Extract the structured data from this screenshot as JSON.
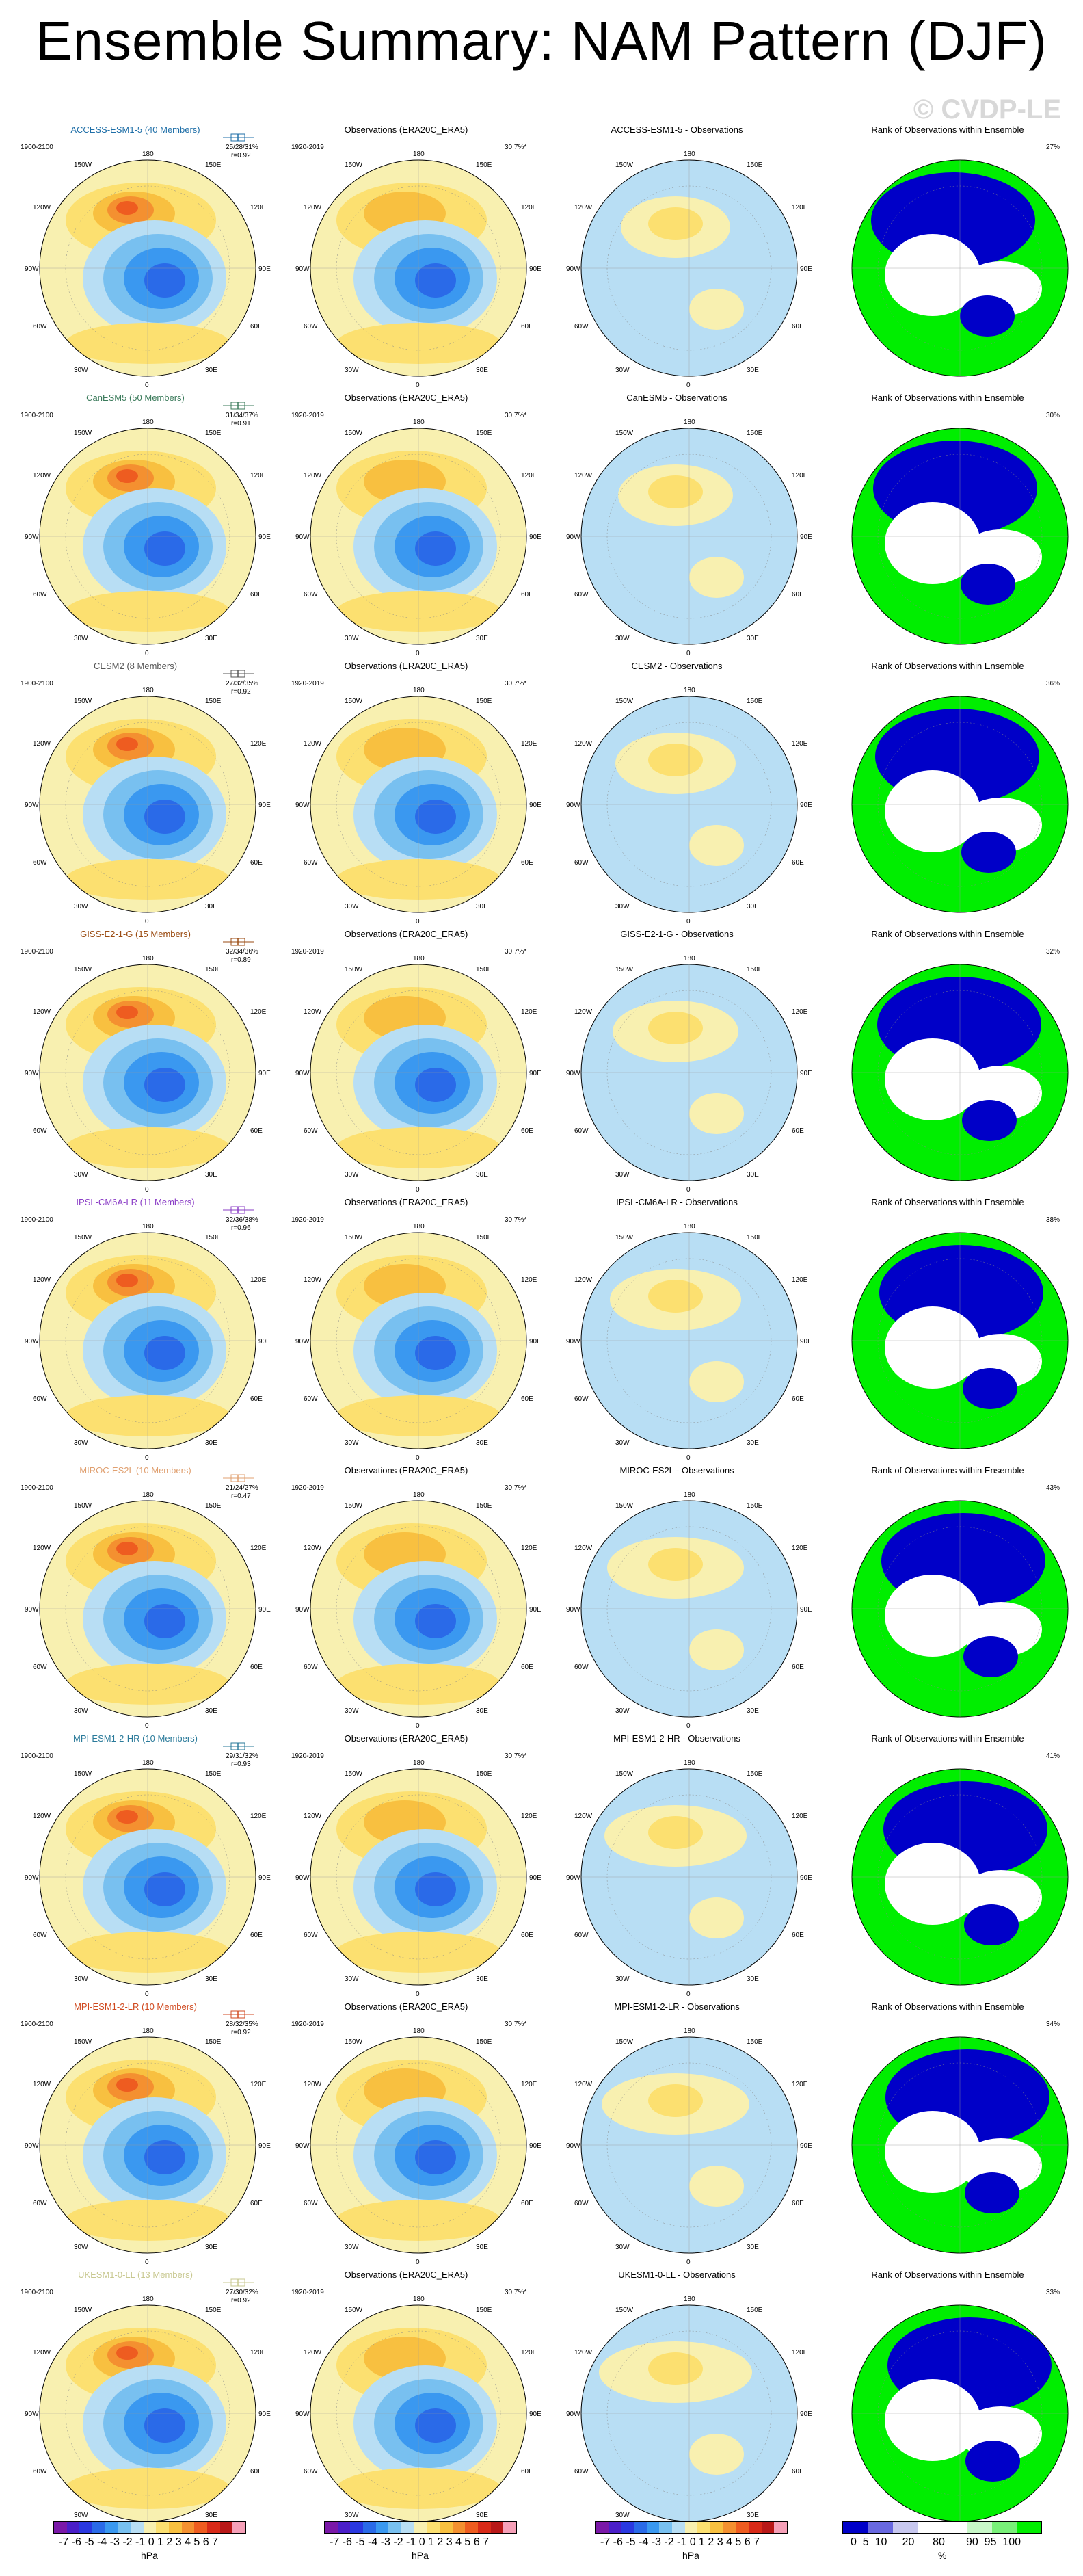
{
  "page": {
    "title": "Ensemble Summary: NAM Pattern (DJF)",
    "watermark": "© CVDP-LE"
  },
  "labels": {
    "lon_180": "180",
    "lon_0": "0",
    "lon_150w": "150W",
    "lon_120w": "120W",
    "lon_90w": "90W",
    "lon_60w": "60W",
    "lon_30w": "30W",
    "lon_150e": "150E",
    "lon_120e": "120E",
    "lon_90e": "90E",
    "lon_60e": "60E",
    "lon_30e": "30E"
  },
  "columns": {
    "obs_title": "Observations (ERA20C_ERA5)",
    "obs_period": "1920-2019",
    "obs_pvar": "30.7%*",
    "rank_title": "Rank of Observations within Ensemble",
    "model_period": "1900-2100"
  },
  "rows": [
    {
      "model": "ACCESS-ESM1-5 (40 Members)",
      "color": "#1f6fa8",
      "stat1": "25/28/31%",
      "stat2": "r=0.92",
      "diff_title": "ACCESS-ESM1-5 - Observations",
      "rank_pct": "27%"
    },
    {
      "model": "CanESM5 (50 Members)",
      "color": "#3a7a5a",
      "stat1": "31/34/37%",
      "stat2": "r=0.91",
      "diff_title": "CanESM5 - Observations",
      "rank_pct": "30%"
    },
    {
      "model": "CESM2 (8 Members)",
      "color": "#555555",
      "stat1": "27/32/35%",
      "stat2": "r=0.92",
      "diff_title": "CESM2 - Observations",
      "rank_pct": "36%"
    },
    {
      "model": "GISS-E2-1-G (15 Members)",
      "color": "#9a4a10",
      "stat1": "32/34/36%",
      "stat2": "r=0.89",
      "diff_title": "GISS-E2-1-G - Observations",
      "rank_pct": "32%"
    },
    {
      "model": "IPSL-CM6A-LR (11 Members)",
      "color": "#8a3cc6",
      "stat1": "32/36/38%",
      "stat2": "r=0.96",
      "diff_title": "IPSL-CM6A-LR - Observations",
      "rank_pct": "38%"
    },
    {
      "model": "MIROC-ES2L (10 Members)",
      "color": "#e0a070",
      "stat1": "21/24/27%",
      "stat2": "r=0.47",
      "diff_title": "MIROC-ES2L - Observations",
      "rank_pct": "43%"
    },
    {
      "model": "MPI-ESM1-2-HR (10 Members)",
      "color": "#2a7a9a",
      "stat1": "29/31/32%",
      "stat2": "r=0.93",
      "diff_title": "MPI-ESM1-2-HR - Observations",
      "rank_pct": "41%"
    },
    {
      "model": "MPI-ESM1-2-LR (10 Members)",
      "color": "#d04a20",
      "stat1": "28/32/35%",
      "stat2": "r=0.92",
      "diff_title": "MPI-ESM1-2-LR - Observations",
      "rank_pct": "34%"
    },
    {
      "model": "UKESM1-0-LL (13 Members)",
      "color": "#c8c890",
      "stat1": "27/30/32%",
      "stat2": "r=0.92",
      "diff_title": "UKESM1-0-LL - Observations",
      "rank_pct": "33%"
    }
  ],
  "colorbars": {
    "hpa_ticks": "-7 -6 -5 -4 -3 -2 -1 0 1 2 3 4 5 6 7",
    "hpa_unit": "hPa",
    "rank_ticks": "0  5  10     20      80       90  95  100",
    "rank_unit": "%",
    "hpa_colors": [
      "#7a18a8",
      "#4a1ec8",
      "#2a38e0",
      "#2a6ae8",
      "#3a98f0",
      "#78c0f0",
      "#b8def4",
      "#f8f0b0",
      "#fce070",
      "#f8c040",
      "#f49030",
      "#ee5c20",
      "#d82a18",
      "#b81818",
      "#f6a0b8"
    ],
    "rank_colors": [
      "#0000c8",
      "#6868e0",
      "#c8c8f0",
      "#ffffff",
      "#ffffff",
      "#c8f8c8",
      "#78f078",
      "#00ee00"
    ]
  },
  "chart_data": {
    "type": "heatmap",
    "title": "Ensemble Summary: NAM Pattern (DJF)",
    "colorbar_hpa_range": [
      -7,
      7
    ],
    "colorbar_rank_ticks": [
      0,
      5,
      10,
      20,
      80,
      90,
      95,
      100
    ],
    "panels_per_row": [
      "model NAM pattern",
      "Observations (ERA20C_ERA5)",
      "Model - Observations",
      "Rank of Observations within Ensemble"
    ],
    "models": [
      "ACCESS-ESM1-5",
      "CanESM5",
      "CESM2",
      "GISS-E2-1-G",
      "IPSL-CM6A-LR",
      "MIROC-ES2L",
      "MPI-ESM1-2-HR",
      "MPI-ESM1-2-LR",
      "UKESM1-0-LL"
    ],
    "pct_variance_explained": [
      "25/28/31%",
      "31/34/37%",
      "27/32/35%",
      "32/34/36%",
      "32/36/38%",
      "21/24/27%",
      "29/31/32%",
      "28/32/35%",
      "27/30/32%"
    ],
    "pattern_correlation": [
      0.92,
      0.91,
      0.92,
      0.89,
      0.96,
      0.47,
      0.93,
      0.92,
      0.92
    ],
    "rank_percent": [
      27,
      30,
      36,
      32,
      38,
      43,
      41,
      34,
      33
    ],
    "obs_pct_variance": "30.7%*"
  }
}
